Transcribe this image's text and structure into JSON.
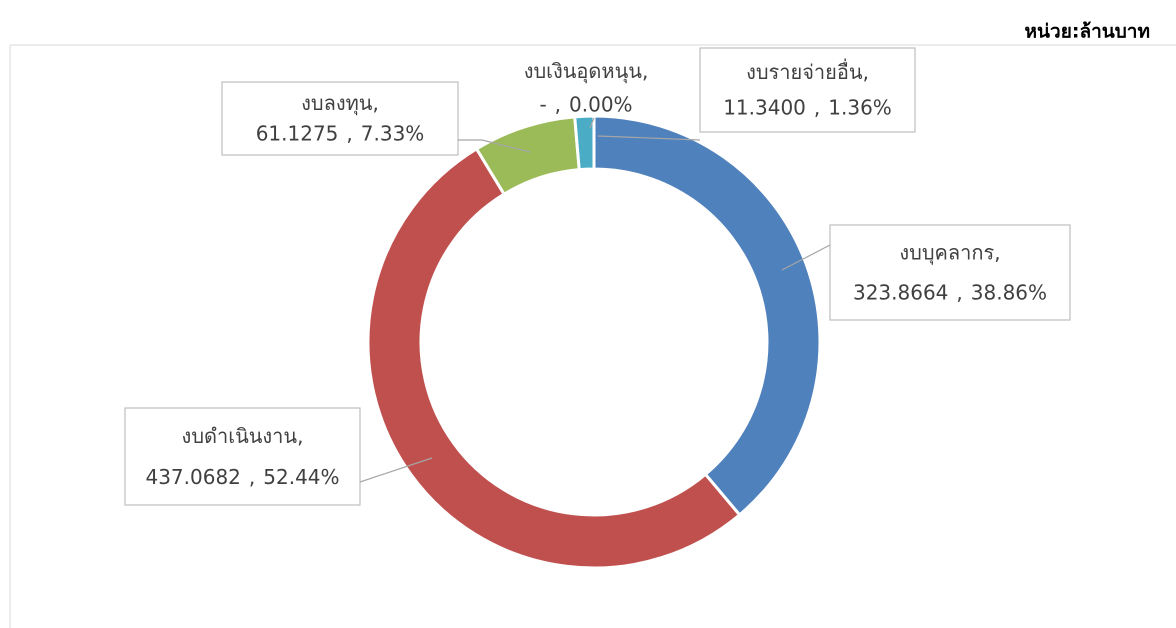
{
  "chart_data": {
    "type": "donut",
    "subtitle": "หน่วย:ล้านบาท",
    "categories": [
      "งบบุคลากร",
      "งบดำเนินงาน",
      "งบลงทุน",
      "งบเงินอุดหนุน",
      "งบรายจ่ายอื่น"
    ],
    "values": [
      323.8664,
      437.0682,
      61.1275,
      0,
      11.34
    ],
    "value_labels": [
      "323.8664",
      "437.0682",
      "61.1275",
      "-",
      "11.3400"
    ],
    "percent_labels": [
      "38.86%",
      "52.44%",
      "7.33%",
      "0.00%",
      "1.36%"
    ],
    "separator": ",",
    "colors": [
      "#4f81bd",
      "#c0504d",
      "#9bbb59",
      "#8064a2",
      "#4bacc6"
    ]
  }
}
